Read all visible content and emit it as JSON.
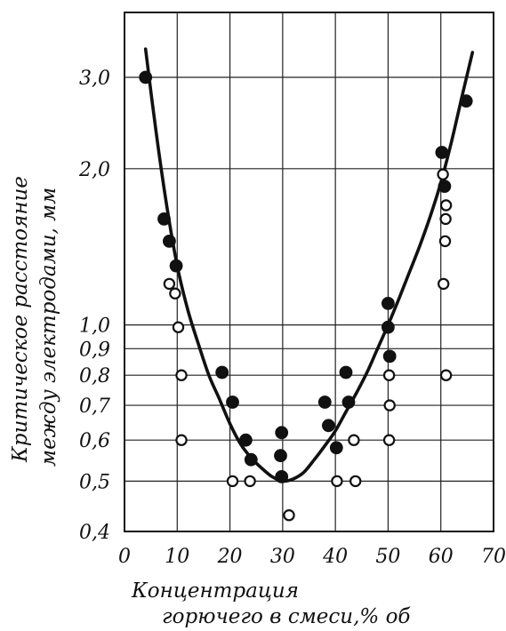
{
  "chart_data": {
    "type": "scatter",
    "title": "",
    "xlabel_line1": "Концентрация",
    "xlabel_line2": "горючего в смеси,% об",
    "ylabel_line1": "Критическое расстояние",
    "ylabel_line2": "между электродами, мм",
    "x_scale": "linear",
    "y_scale": "log",
    "xlim": [
      0,
      70
    ],
    "ylim": [
      0.4,
      4.0
    ],
    "x_ticks": [
      {
        "value": 0,
        "label": "0"
      },
      {
        "value": 10,
        "label": "10"
      },
      {
        "value": 20,
        "label": "20"
      },
      {
        "value": 30,
        "label": "30"
      },
      {
        "value": 40,
        "label": "40"
      },
      {
        "value": 50,
        "label": "50"
      },
      {
        "value": 60,
        "label": "60"
      },
      {
        "value": 70,
        "label": "70"
      }
    ],
    "y_ticks": [
      {
        "value": 0.4,
        "label": "0,4"
      },
      {
        "value": 0.5,
        "label": "0,5"
      },
      {
        "value": 0.6,
        "label": "0,6"
      },
      {
        "value": 0.7,
        "label": "0,7"
      },
      {
        "value": 0.8,
        "label": "0,8"
      },
      {
        "value": 0.9,
        "label": "0,9"
      },
      {
        "value": 1.0,
        "label": "1,0"
      },
      {
        "value": 2.0,
        "label": "2,0"
      },
      {
        "value": 3.0,
        "label": "3,0"
      }
    ],
    "grid": true,
    "series": [
      {
        "marker": "filled",
        "points": [
          [
            4.0,
            3.0
          ],
          [
            7.5,
            1.6
          ],
          [
            8.5,
            1.45
          ],
          [
            9.8,
            1.3
          ],
          [
            18.5,
            0.81
          ],
          [
            20.5,
            0.71
          ],
          [
            23.0,
            0.6
          ],
          [
            24.0,
            0.55
          ],
          [
            29.8,
            0.62
          ],
          [
            29.6,
            0.56
          ],
          [
            29.8,
            0.51
          ],
          [
            38.0,
            0.71
          ],
          [
            38.7,
            0.64
          ],
          [
            40.2,
            0.58
          ],
          [
            42.0,
            0.81
          ],
          [
            42.5,
            0.71
          ],
          [
            50.0,
            1.1
          ],
          [
            50.0,
            0.99
          ],
          [
            50.3,
            0.87
          ],
          [
            60.2,
            2.15
          ],
          [
            60.7,
            1.85
          ],
          [
            64.8,
            2.7
          ]
        ]
      },
      {
        "marker": "open",
        "points": [
          [
            8.5,
            1.2
          ],
          [
            9.6,
            1.15
          ],
          [
            10.2,
            0.99
          ],
          [
            10.8,
            0.8
          ],
          [
            10.8,
            0.6
          ],
          [
            20.5,
            0.5
          ],
          [
            23.8,
            0.5
          ],
          [
            31.2,
            0.43
          ],
          [
            40.3,
            0.5
          ],
          [
            43.8,
            0.5
          ],
          [
            43.5,
            0.6
          ],
          [
            50.2,
            0.8
          ],
          [
            50.3,
            0.7
          ],
          [
            50.2,
            0.6
          ],
          [
            60.4,
            1.95
          ],
          [
            61.0,
            1.7
          ],
          [
            60.9,
            1.6
          ],
          [
            60.8,
            1.45
          ],
          [
            60.5,
            1.2
          ],
          [
            61.0,
            0.8
          ]
        ]
      }
    ],
    "fit_curve": {
      "x": [
        4,
        6,
        8,
        10,
        12,
        14,
        16,
        18,
        20,
        22,
        24,
        26,
        28,
        30,
        32,
        34,
        36,
        38,
        40,
        42,
        44,
        46,
        48,
        50,
        52,
        54,
        56,
        58,
        60,
        62,
        64,
        66
      ],
      "y": [
        3.4,
        2.35,
        1.7,
        1.3,
        1.07,
        0.92,
        0.8,
        0.72,
        0.645,
        0.59,
        0.555,
        0.53,
        0.51,
        0.5,
        0.505,
        0.52,
        0.55,
        0.585,
        0.625,
        0.68,
        0.74,
        0.81,
        0.9,
        1.0,
        1.12,
        1.26,
        1.42,
        1.62,
        1.88,
        2.25,
        2.75,
        3.35
      ]
    }
  }
}
